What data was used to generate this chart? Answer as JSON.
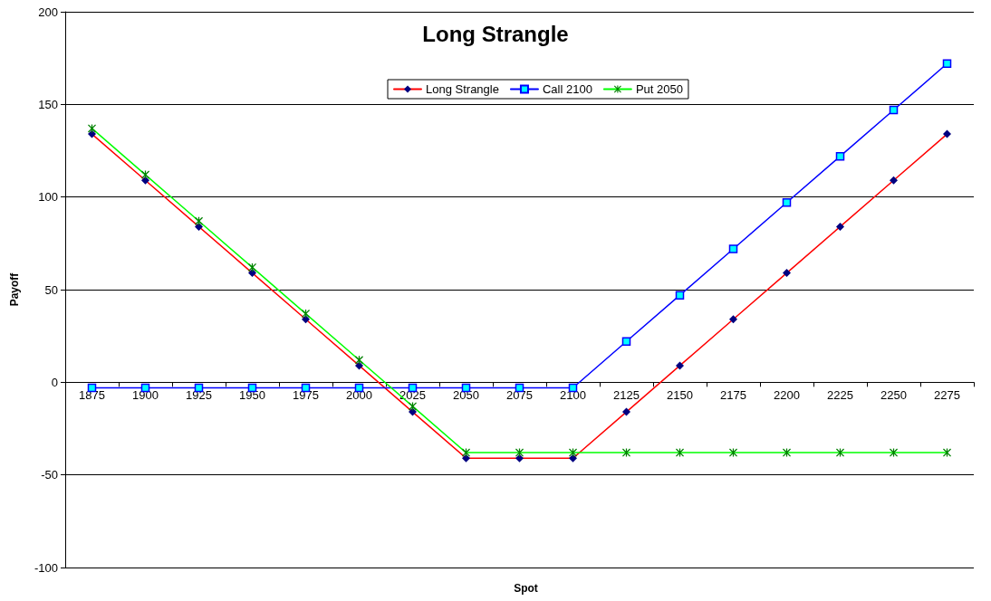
{
  "chart_data": {
    "type": "line",
    "title": "Long Strangle",
    "xlabel": "Spot",
    "ylabel": "Payoff",
    "categories": [
      "1875",
      "1900",
      "1925",
      "1950",
      "1975",
      "2000",
      "2025",
      "2050",
      "2075",
      "2100",
      "2125",
      "2150",
      "2175",
      "2200",
      "2225",
      "2250",
      "2275"
    ],
    "series": [
      {
        "name": "Long Strangle",
        "color": "#ff0000",
        "marker": "diamond",
        "colors": [
          "#000080",
          "#000080",
          "#000080",
          "#000080",
          "#000080",
          "#000080",
          "#000080",
          "#000080",
          "#000080",
          "#000080",
          "#000080",
          "#000080",
          "#000080",
          "#000080",
          "#000080",
          "#000080",
          "#000080"
        ],
        "values": [
          134,
          109,
          84,
          59,
          34,
          9,
          -16,
          -41,
          -41,
          -41,
          -16,
          9,
          34,
          59,
          84,
          109,
          134
        ]
      },
      {
        "name": "Call 2100",
        "color": "#0000ff",
        "marker": "square",
        "colors": [
          "#00ffff",
          "#00ffff",
          "#00ffff",
          "#00ffff",
          "#00ffff",
          "#00ffff",
          "#00ffff",
          "#00ffff",
          "#00ffff",
          "#00ffff",
          "#00ffff",
          "#00ffff",
          "#00ffff",
          "#00ffff",
          "#00ffff",
          "#00ffff",
          "#00ffff"
        ],
        "values": [
          -3,
          -3,
          -3,
          -3,
          -3,
          -3,
          -3,
          -3,
          -3,
          -3,
          22,
          47,
          72,
          97,
          122,
          147,
          172
        ]
      },
      {
        "name": "Put 2050",
        "color": "#00ff00",
        "marker": "cross",
        "colors": [
          "#008000",
          "#008000",
          "#008000",
          "#008000",
          "#008000",
          "#008000",
          "#008000",
          "#008000",
          "#008000",
          "#008000",
          "#008000",
          "#008000",
          "#008000",
          "#008000",
          "#008000",
          "#008000",
          "#008000"
        ],
        "values": [
          137,
          112,
          87,
          62,
          37,
          12,
          -13,
          -38,
          -38,
          -38,
          -38,
          -38,
          -38,
          -38,
          -38,
          -38,
          -38
        ]
      }
    ],
    "ylim": [
      -100,
      200
    ],
    "yticks": [
      -100,
      -50,
      0,
      50,
      100,
      150,
      200
    ],
    "grid": "y",
    "legend": "top",
    "line_style": "solid"
  }
}
